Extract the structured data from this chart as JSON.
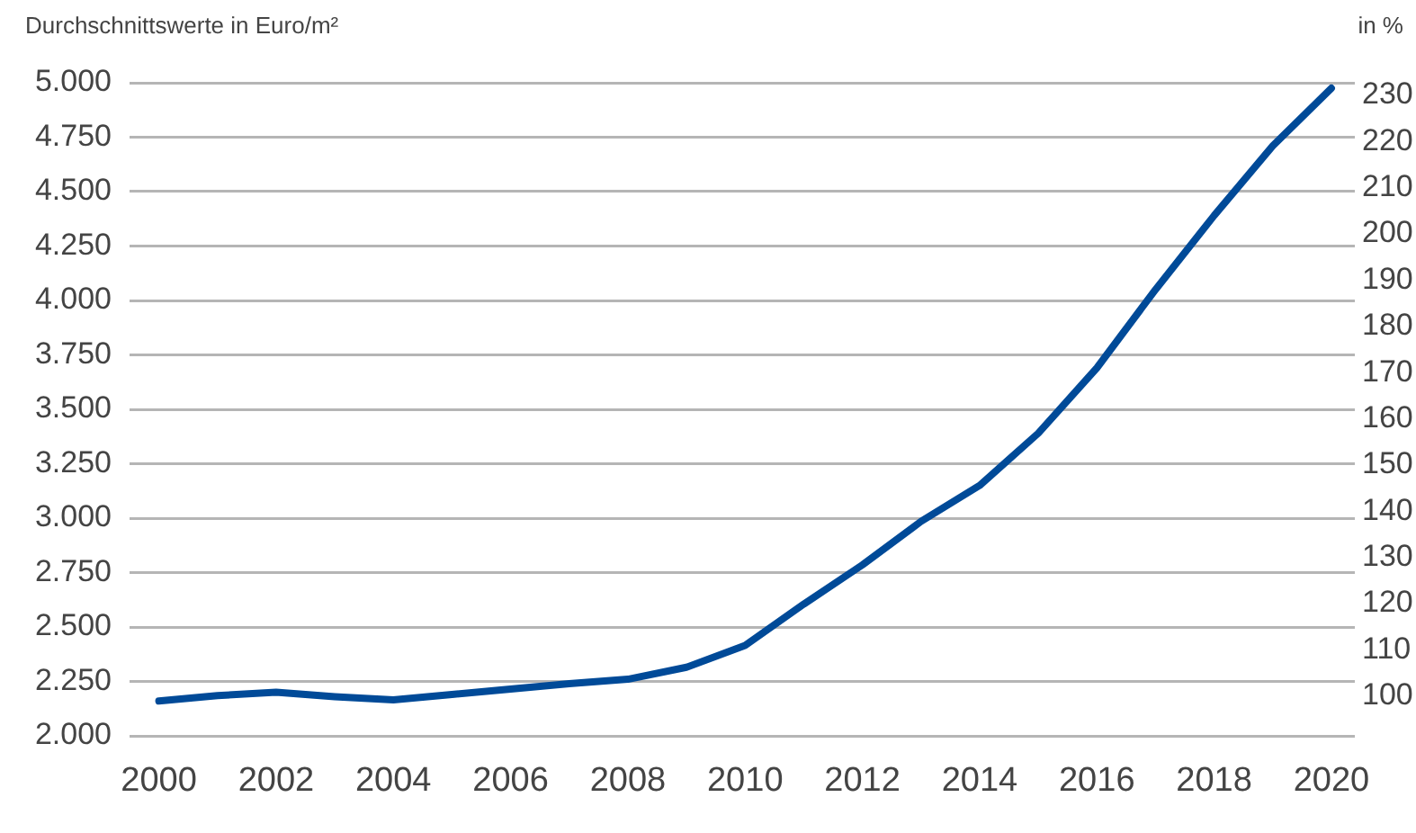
{
  "chart_data": {
    "type": "line",
    "ylabel": "Durchschnittswerte in Euro/m²",
    "y2label": "in %",
    "x": [
      2000,
      2001,
      2002,
      2003,
      2004,
      2005,
      2006,
      2007,
      2008,
      2009,
      2010,
      2011,
      2012,
      2013,
      2014,
      2015,
      2016,
      2017,
      2018,
      2019,
      2020
    ],
    "series": [
      {
        "color": "#004a98",
        "values": [
          2160,
          2185,
          2200,
          2180,
          2165,
          2190,
          2215,
          2240,
          2260,
          2315,
          2415,
          2605,
          2785,
          2985,
          3150,
          3390,
          3690,
          4050,
          4390,
          4710,
          4975
        ]
      }
    ],
    "xlim": [
      1999.5,
      2020.4
    ],
    "xticks": [
      2000,
      2002,
      2004,
      2006,
      2008,
      2010,
      2012,
      2014,
      2016,
      2018,
      2020
    ],
    "ylim": [
      2000,
      5000
    ],
    "yticks": [
      {
        "value": 2000,
        "label": "2.000"
      },
      {
        "value": 2250,
        "label": "2.250"
      },
      {
        "value": 2500,
        "label": "2.500"
      },
      {
        "value": 2750,
        "label": "2.750"
      },
      {
        "value": 3000,
        "label": "3.000"
      },
      {
        "value": 3250,
        "label": "3.250"
      },
      {
        "value": 3500,
        "label": "3.500"
      },
      {
        "value": 3750,
        "label": "3.750"
      },
      {
        "value": 4000,
        "label": "4.000"
      },
      {
        "value": 4250,
        "label": "4.250"
      },
      {
        "value": 4500,
        "label": "4.500"
      },
      {
        "value": 4750,
        "label": "4.750"
      },
      {
        "value": 5000,
        "label": "5.000"
      }
    ],
    "y2lim": [
      91.4,
      232.7
    ],
    "y2ticks": [
      100,
      110,
      120,
      130,
      140,
      150,
      160,
      170,
      180,
      190,
      200,
      210,
      220,
      230
    ],
    "grid": "y",
    "legend": false,
    "marker": "none",
    "line_style": "solid"
  }
}
